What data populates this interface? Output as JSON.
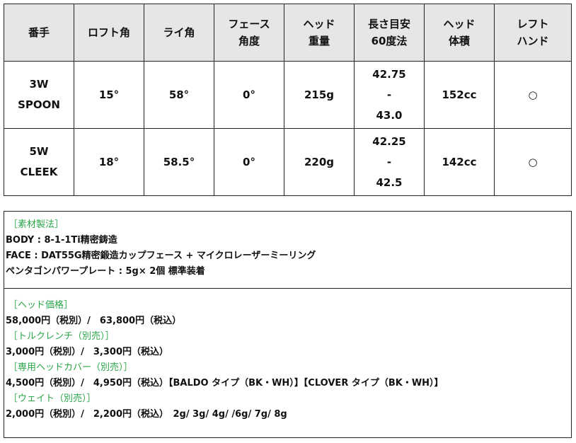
{
  "table": {
    "headers": [
      "番手",
      "ロフト角",
      "ライ角",
      "フェース\n角度",
      "ヘッド\n重量",
      "長さ目安\n60度法",
      "ヘッド\n体積",
      "レフト\nハンド"
    ],
    "rows": [
      [
        "3W\nSPOON",
        "15°",
        "58°",
        "0°",
        "215g",
        "42.75\n-\n43.0",
        "152cc",
        "○"
      ],
      [
        "5W\nCLEEK",
        "18°",
        "58.5°",
        "0°",
        "220g",
        "42.25\n-\n42.5",
        "142cc",
        "○"
      ]
    ]
  },
  "materials": {
    "heading": "［素材製法］",
    "lines": [
      "BODY : 8-1-1Ti精密鋳造",
      "FACE : DAT55G精密鍛造カップフェース + マイクロレーザーミーリング",
      "ペンタゴンパワープレート : 5g× 2個 標準装着"
    ]
  },
  "prices": [
    {
      "heading": "［ヘッド価格］",
      "line": "58,000円（税別）/　63,800円（税込）"
    },
    {
      "heading": "［トルクレンチ（別売）］",
      "line": "3,000円（税別）/　3,300円（税込）"
    },
    {
      "heading": "［専用ヘッドカバー（別売）］",
      "line": "4,500円（税別）/　4,950円（税込）【BALDO タイプ（BK・WH）】【CLOVER タイプ（BK・WH）】"
    },
    {
      "heading": "［ウェイト（別売）］",
      "line": "2,000円（税別）/　2,200円（税込）　2g/ 3g/ 4g/ /6g/ 7g/ 8g"
    }
  ],
  "colors": {
    "heading_green": "#2aa64a",
    "header_bg": "#e6e6e6"
  }
}
